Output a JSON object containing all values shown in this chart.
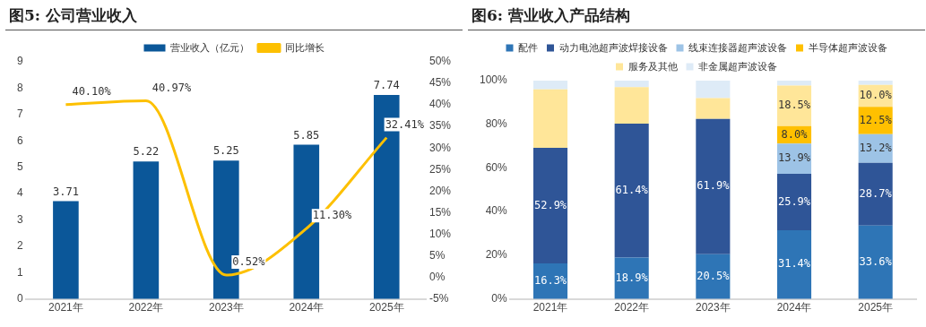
{
  "chart_data": [
    {
      "type": "bar",
      "title": "图5: 公司营业收入",
      "categories": [
        "2021年",
        "2022年",
        "2023年",
        "2024年",
        "2025年"
      ],
      "series": [
        {
          "name": "营业收入（亿元）",
          "color": "#0b5799",
          "values": [
            3.71,
            5.22,
            5.25,
            5.85,
            7.74
          ],
          "value_labels": [
            "3.71",
            "5.22",
            "5.25",
            "5.85",
            "7.74"
          ]
        },
        {
          "name": "同比增长",
          "type": "line",
          "axis": "y2",
          "color": "#fdc000",
          "values": [
            40.1,
            40.97,
            0.52,
            11.3,
            32.41
          ],
          "value_labels": [
            "40.10%",
            "40.97%",
            "0.52%",
            "11.30%",
            "32.41%"
          ]
        }
      ],
      "ylim": [
        0,
        9
      ],
      "yticks": [
        0,
        1,
        2,
        3,
        4,
        5,
        6,
        7,
        8,
        9
      ],
      "y2lim": [
        -5,
        50
      ],
      "y2ticks": [
        {
          "value": -5,
          "label": "-5%"
        },
        {
          "value": 0,
          "label": "0%"
        },
        {
          "value": 5,
          "label": "5%"
        },
        {
          "value": 10,
          "label": "10%"
        },
        {
          "value": 15,
          "label": "15%"
        },
        {
          "value": 20,
          "label": "20%"
        },
        {
          "value": 25,
          "label": "25%"
        },
        {
          "value": 30,
          "label": "30%"
        },
        {
          "value": 35,
          "label": "35%"
        },
        {
          "value": 40,
          "label": "40%"
        },
        {
          "value": 45,
          "label": "45%"
        },
        {
          "value": 50,
          "label": "50%"
        }
      ],
      "grid": false,
      "legend": "top",
      "marker": "none"
    },
    {
      "type": "bar",
      "stacked": true,
      "title": "图6: 营业收入产品结构",
      "categories": [
        "2021年",
        "2022年",
        "2023年",
        "2024年",
        "2025年"
      ],
      "series": [
        {
          "name": "配件",
          "color": "#2e75b6",
          "values": [
            16.3,
            18.9,
            20.5,
            31.4,
            33.6
          ],
          "value_labels": [
            "16.3%",
            "18.9%",
            "20.5%",
            "31.4%",
            "33.6%"
          ]
        },
        {
          "name": "动力电池超声波焊接设备",
          "color": "#2f5597",
          "values": [
            52.9,
            61.4,
            61.9,
            25.9,
            28.7
          ],
          "value_labels": [
            "52.9%",
            "61.4%",
            "61.9%",
            "25.9%",
            "28.7%"
          ]
        },
        {
          "name": "线束连接器超声波设备",
          "color": "#9dc3e6",
          "values": [
            0,
            0,
            0,
            13.9,
            13.2
          ],
          "value_labels": [
            null,
            null,
            null,
            "13.9%",
            "13.2%"
          ]
        },
        {
          "name": "半导体超声波设备",
          "color": "#ffc000",
          "values": [
            0,
            0,
            0,
            8.0,
            12.5
          ],
          "value_labels": [
            null,
            null,
            null,
            "8.0%",
            "12.5%"
          ]
        },
        {
          "name": "服务及其他",
          "color": "#ffe699",
          "values": [
            26.8,
            16.7,
            9.6,
            18.5,
            10.0
          ],
          "value_labels": [
            null,
            null,
            null,
            "18.5%",
            "10.0%"
          ]
        },
        {
          "name": "非金属超声波设备",
          "color": "#deebf7",
          "values": [
            4.0,
            3.0,
            8.0,
            2.3,
            2.0
          ]
        }
      ],
      "ylim": [
        0,
        100
      ],
      "yticks": [
        {
          "value": 0,
          "label": "0%"
        },
        {
          "value": 20,
          "label": "20%"
        },
        {
          "value": 40,
          "label": "40%"
        },
        {
          "value": 60,
          "label": "60%"
        },
        {
          "value": 80,
          "label": "80%"
        },
        {
          "value": 100,
          "label": "100%"
        }
      ],
      "grid": false,
      "legend": "top"
    }
  ]
}
